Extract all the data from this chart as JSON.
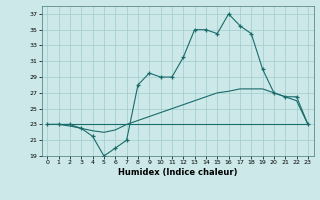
{
  "title": "",
  "xlabel": "Humidex (Indice chaleur)",
  "bg_color": "#cce8e8",
  "grid_color": "#a0cccc",
  "line_color": "#1a6b6b",
  "xlim": [
    -0.5,
    23.5
  ],
  "ylim": [
    19,
    38
  ],
  "yticks": [
    19,
    21,
    23,
    25,
    27,
    29,
    31,
    33,
    35,
    37
  ],
  "xticks": [
    0,
    1,
    2,
    3,
    4,
    5,
    6,
    7,
    8,
    9,
    10,
    11,
    12,
    13,
    14,
    15,
    16,
    17,
    18,
    19,
    20,
    21,
    22,
    23
  ],
  "line1_x": [
    0,
    1,
    2,
    3,
    4,
    5,
    6,
    7,
    8,
    9,
    10,
    11,
    12,
    13,
    14,
    15,
    16,
    17,
    18,
    19,
    20,
    21,
    22,
    23
  ],
  "line1_y": [
    23,
    23,
    23,
    22.5,
    21.5,
    19,
    20,
    21,
    28,
    29.5,
    29,
    29,
    31.5,
    35,
    35,
    34.5,
    37,
    35.5,
    34.5,
    30,
    27,
    26.5,
    26.5,
    23
  ],
  "line2_x": [
    0,
    1,
    2,
    3,
    4,
    5,
    6,
    7,
    8,
    9,
    10,
    11,
    12,
    13,
    14,
    15,
    16,
    17,
    18,
    19,
    20,
    21,
    22,
    23
  ],
  "line2_y": [
    23,
    23,
    23,
    23,
    23,
    23,
    23,
    23,
    23,
    23,
    23,
    23,
    23,
    23,
    23,
    23,
    23,
    23,
    23,
    23,
    23,
    23,
    23,
    23
  ],
  "line3_x": [
    0,
    1,
    2,
    3,
    4,
    5,
    6,
    7,
    8,
    9,
    10,
    11,
    12,
    13,
    14,
    15,
    16,
    17,
    18,
    19,
    20,
    21,
    22,
    23
  ],
  "line3_y": [
    23,
    23,
    22.8,
    22.5,
    22.2,
    22.0,
    22.3,
    23.0,
    23.5,
    24.0,
    24.5,
    25.0,
    25.5,
    26.0,
    26.5,
    27.0,
    27.2,
    27.5,
    27.5,
    27.5,
    27.0,
    26.5,
    26.0,
    23.0
  ]
}
